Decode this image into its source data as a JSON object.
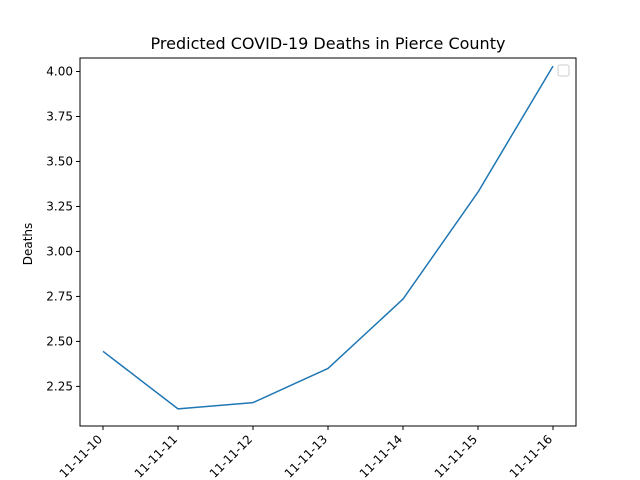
{
  "chart_data": {
    "type": "line",
    "title": "Predicted COVID-19 Deaths in Pierce County",
    "xlabel": "",
    "ylabel": "Deaths",
    "x": [
      "11-11-10",
      "11-11-11",
      "11-11-12",
      "11-11-13",
      "11-11-14",
      "11-11-15",
      "11-11-16"
    ],
    "series": [
      {
        "values": [
          2.445,
          2.125,
          2.16,
          2.35,
          2.735,
          3.33,
          4.03
        ],
        "color": "#1f77b4"
      }
    ],
    "yticks": [
      "2.25",
      "2.50",
      "2.75",
      "3.00",
      "3.25",
      "3.50",
      "3.75",
      "4.00"
    ],
    "ylim": [
      2.03,
      4.075
    ],
    "grid": false,
    "legend": {
      "placement": "upper-right",
      "entries": []
    }
  }
}
